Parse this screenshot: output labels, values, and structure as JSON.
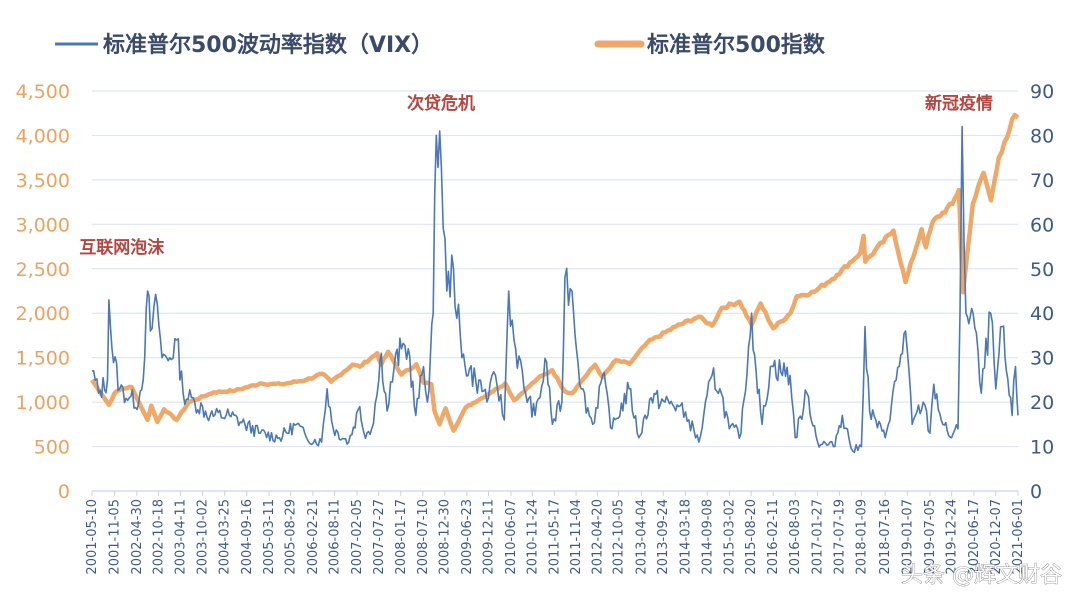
{
  "chart_data": {
    "type": "line",
    "legend": [
      {
        "name": "标准普尔500波动率指数（VIX）",
        "color": "#4a78b8"
      },
      {
        "name": "标准普尔500指数",
        "color": "#f0a868"
      }
    ],
    "y_left": {
      "ticks": [
        "0",
        "500",
        "1,000",
        "1,500",
        "2,000",
        "2,500",
        "3,000",
        "3,500",
        "4,000",
        "4,500"
      ],
      "range": [
        0,
        4500
      ],
      "color": "#f0a15e"
    },
    "y_right": {
      "ticks": [
        "0",
        "10",
        "20",
        "30",
        "40",
        "50",
        "60",
        "70",
        "80",
        "90"
      ],
      "range": [
        0,
        90
      ],
      "color": "#3d5a8a"
    },
    "x_ticks": [
      "2001-05-10",
      "2001-11-05",
      "2002-04-30",
      "2002-10-18",
      "2003-04-11",
      "2003-10-02",
      "2004-03-25",
      "2004-09-16",
      "2005-03-11",
      "2005-08-29",
      "2006-02-21",
      "2006-08-11",
      "2007-02-05",
      "2007-07-27",
      "2008-01-17",
      "2008-07-10",
      "2008-12-30",
      "2009-06-23",
      "2009-12-11",
      "2010-06-07",
      "2010-11-24",
      "2011-05-17",
      "2011-11-04",
      "2012-04-20",
      "2012-10-05",
      "2013-04-04",
      "2013-09-24",
      "2014-03-18",
      "2014-09-08",
      "2015-03-02",
      "2015-08-20",
      "2016-02-11",
      "2016-08-03",
      "2017-01-27",
      "2017-07-19",
      "2018-01-09",
      "2018-07-16",
      "2019-01-07",
      "2019-07-05",
      "2019-12-24",
      "2020-06-17",
      "2020-12-07",
      "2021-06-01"
    ],
    "x_range": [
      "2001-05-10",
      "2021-06-01"
    ],
    "series": [
      {
        "name": "标准普尔500波动率指数（VIX）",
        "axis": "right",
        "points": [
          [
            "2001-05-10",
            27
          ],
          [
            "2001-07-01",
            22
          ],
          [
            "2001-09-10",
            25
          ],
          [
            "2001-09-21",
            43
          ],
          [
            "2001-10-15",
            32
          ],
          [
            "2001-12-15",
            23
          ],
          [
            "2002-03-01",
            21
          ],
          [
            "2002-05-15",
            20
          ],
          [
            "2002-07-01",
            30
          ],
          [
            "2002-07-24",
            45
          ],
          [
            "2002-08-15",
            36
          ],
          [
            "2002-10-09",
            42
          ],
          [
            "2002-11-15",
            30
          ],
          [
            "2003-01-15",
            30
          ],
          [
            "2003-03-11",
            34
          ],
          [
            "2003-05-01",
            22
          ],
          [
            "2003-08-01",
            20
          ],
          [
            "2003-12-01",
            17
          ],
          [
            "2004-05-01",
            17
          ],
          [
            "2004-09-01",
            15
          ],
          [
            "2005-01-01",
            13
          ],
          [
            "2005-06-01",
            12
          ],
          [
            "2005-10-15",
            15
          ],
          [
            "2006-01-01",
            12
          ],
          [
            "2006-05-01",
            11
          ],
          [
            "2006-06-13",
            23
          ],
          [
            "2006-08-01",
            14
          ],
          [
            "2006-12-01",
            11
          ],
          [
            "2007-02-27",
            19
          ],
          [
            "2007-04-01",
            13
          ],
          [
            "2007-06-01",
            14
          ],
          [
            "2007-07-27",
            25
          ],
          [
            "2007-08-16",
            31
          ],
          [
            "2007-10-01",
            18
          ],
          [
            "2007-11-26",
            28
          ],
          [
            "2008-01-22",
            32
          ],
          [
            "2008-03-17",
            32
          ],
          [
            "2008-05-15",
            17
          ],
          [
            "2008-07-15",
            28
          ],
          [
            "2008-08-15",
            20
          ],
          [
            "2008-09-30",
            40
          ],
          [
            "2008-10-24",
            80
          ],
          [
            "2008-11-20",
            81
          ],
          [
            "2009-01-15",
            45
          ],
          [
            "2009-03-09",
            50
          ],
          [
            "2009-05-15",
            30
          ],
          [
            "2009-09-01",
            25
          ],
          [
            "2009-12-11",
            21
          ],
          [
            "2010-02-05",
            26
          ],
          [
            "2010-04-15",
            16
          ],
          [
            "2010-05-20",
            45
          ],
          [
            "2010-07-01",
            34
          ],
          [
            "2010-10-01",
            22
          ],
          [
            "2010-12-15",
            17
          ],
          [
            "2011-03-16",
            29
          ],
          [
            "2011-05-01",
            15
          ],
          [
            "2011-07-15",
            20
          ],
          [
            "2011-08-08",
            48
          ],
          [
            "2011-10-03",
            45
          ],
          [
            "2011-12-15",
            23
          ],
          [
            "2012-03-15",
            15
          ],
          [
            "2012-06-01",
            26
          ],
          [
            "2012-08-15",
            14
          ],
          [
            "2012-12-28",
            23
          ],
          [
            "2013-03-15",
            12
          ],
          [
            "2013-06-20",
            21
          ],
          [
            "2013-10-08",
            20
          ],
          [
            "2014-01-24",
            19
          ],
          [
            "2014-04-15",
            16
          ],
          [
            "2014-07-03",
            11
          ],
          [
            "2014-10-15",
            26
          ],
          [
            "2014-12-16",
            23
          ],
          [
            "2015-03-01",
            14
          ],
          [
            "2015-06-01",
            13
          ],
          [
            "2015-08-24",
            40
          ],
          [
            "2015-09-29",
            27
          ],
          [
            "2015-11-15",
            15
          ],
          [
            "2016-01-20",
            28
          ],
          [
            "2016-02-11",
            28
          ],
          [
            "2016-06-24",
            26
          ],
          [
            "2016-08-03",
            12
          ],
          [
            "2016-11-04",
            22
          ],
          [
            "2017-01-27",
            11
          ],
          [
            "2017-06-01",
            10
          ],
          [
            "2017-08-11",
            17
          ],
          [
            "2017-11-01",
            9
          ],
          [
            "2018-01-09",
            10
          ],
          [
            "2018-02-06",
            37
          ],
          [
            "2018-03-15",
            18
          ],
          [
            "2018-07-16",
            12
          ],
          [
            "2018-10-11",
            25
          ],
          [
            "2018-12-24",
            36
          ],
          [
            "2019-02-15",
            15
          ],
          [
            "2019-05-13",
            20
          ],
          [
            "2019-07-05",
            13
          ],
          [
            "2019-08-05",
            24
          ],
          [
            "2019-10-15",
            15
          ],
          [
            "2019-12-24",
            12
          ],
          [
            "2020-02-12",
            14
          ],
          [
            "2020-02-28",
            40
          ],
          [
            "2020-03-16",
            82
          ],
          [
            "2020-04-15",
            40
          ],
          [
            "2020-06-11",
            40
          ],
          [
            "2020-08-15",
            22
          ],
          [
            "2020-10-28",
            40
          ],
          [
            "2020-12-07",
            23
          ],
          [
            "2021-01-27",
            37
          ],
          [
            "2021-03-01",
            27
          ],
          [
            "2021-04-15",
            17
          ],
          [
            "2021-05-12",
            28
          ],
          [
            "2021-06-01",
            17
          ]
        ]
      },
      {
        "name": "标准普尔500指数",
        "axis": "left",
        "points": [
          [
            "2001-05-10",
            1250
          ],
          [
            "2001-09-21",
            970
          ],
          [
            "2001-11-05",
            1100
          ],
          [
            "2002-01-01",
            1150
          ],
          [
            "2002-03-19",
            1170
          ],
          [
            "2002-07-23",
            800
          ],
          [
            "2002-08-22",
            960
          ],
          [
            "2002-10-09",
            777
          ],
          [
            "2002-12-01",
            920
          ],
          [
            "2003-03-11",
            800
          ],
          [
            "2003-06-15",
            1000
          ],
          [
            "2003-12-31",
            1110
          ],
          [
            "2004-06-15",
            1130
          ],
          [
            "2004-12-31",
            1210
          ],
          [
            "2005-06-15",
            1200
          ],
          [
            "2005-12-31",
            1250
          ],
          [
            "2006-05-05",
            1320
          ],
          [
            "2006-07-15",
            1230
          ],
          [
            "2006-12-31",
            1420
          ],
          [
            "2007-02-27",
            1400
          ],
          [
            "2007-07-15",
            1550
          ],
          [
            "2007-08-15",
            1420
          ],
          [
            "2007-10-09",
            1565
          ],
          [
            "2008-01-22",
            1310
          ],
          [
            "2008-05-19",
            1425
          ],
          [
            "2008-07-15",
            1220
          ],
          [
            "2008-09-15",
            1200
          ],
          [
            "2008-10-10",
            900
          ],
          [
            "2008-11-20",
            752
          ],
          [
            "2009-01-06",
            930
          ],
          [
            "2009-03-09",
            680
          ],
          [
            "2009-06-15",
            940
          ],
          [
            "2009-12-31",
            1110
          ],
          [
            "2010-04-23",
            1210
          ],
          [
            "2010-07-02",
            1020
          ],
          [
            "2010-12-31",
            1260
          ],
          [
            "2011-04-29",
            1360
          ],
          [
            "2011-08-08",
            1120
          ],
          [
            "2011-10-03",
            1100
          ],
          [
            "2011-12-31",
            1260
          ],
          [
            "2012-04-02",
            1420
          ],
          [
            "2012-06-01",
            1280
          ],
          [
            "2012-09-14",
            1470
          ],
          [
            "2012-12-31",
            1430
          ],
          [
            "2013-05-21",
            1670
          ],
          [
            "2013-12-31",
            1850
          ],
          [
            "2014-06-30",
            1960
          ],
          [
            "2014-10-15",
            1860
          ],
          [
            "2014-12-31",
            2060
          ],
          [
            "2015-05-21",
            2130
          ],
          [
            "2015-08-24",
            1870
          ],
          [
            "2015-11-03",
            2110
          ],
          [
            "2016-02-11",
            1830
          ],
          [
            "2016-06-27",
            2000
          ],
          [
            "2016-08-15",
            2190
          ],
          [
            "2016-12-31",
            2240
          ],
          [
            "2017-06-30",
            2430
          ],
          [
            "2017-12-31",
            2680
          ],
          [
            "2018-01-26",
            2870
          ],
          [
            "2018-02-08",
            2580
          ],
          [
            "2018-09-20",
            2930
          ],
          [
            "2018-12-24",
            2350
          ],
          [
            "2019-04-30",
            2945
          ],
          [
            "2019-06-03",
            2740
          ],
          [
            "2019-07-26",
            3025
          ],
          [
            "2019-12-31",
            3230
          ],
          [
            "2020-02-19",
            3386
          ],
          [
            "2020-03-23",
            2237
          ],
          [
            "2020-06-08",
            3230
          ],
          [
            "2020-09-02",
            3580
          ],
          [
            "2020-10-30",
            3270
          ],
          [
            "2020-12-31",
            3750
          ],
          [
            "2021-02-15",
            3930
          ],
          [
            "2021-05-07",
            4230
          ],
          [
            "2021-06-01",
            4200
          ]
        ]
      }
    ],
    "annotations": [
      {
        "text": "互联网泡沫",
        "date": "2002-01-01",
        "value_left": 2680
      },
      {
        "text": "次贷危机",
        "date": "2008-12-01",
        "value_left": 4300
      },
      {
        "text": "新冠疫情",
        "date": "2020-02-20",
        "value_left": 4300
      }
    ],
    "grid": true,
    "legend_position": "top"
  },
  "watermark": "头条 @辉文财谷"
}
